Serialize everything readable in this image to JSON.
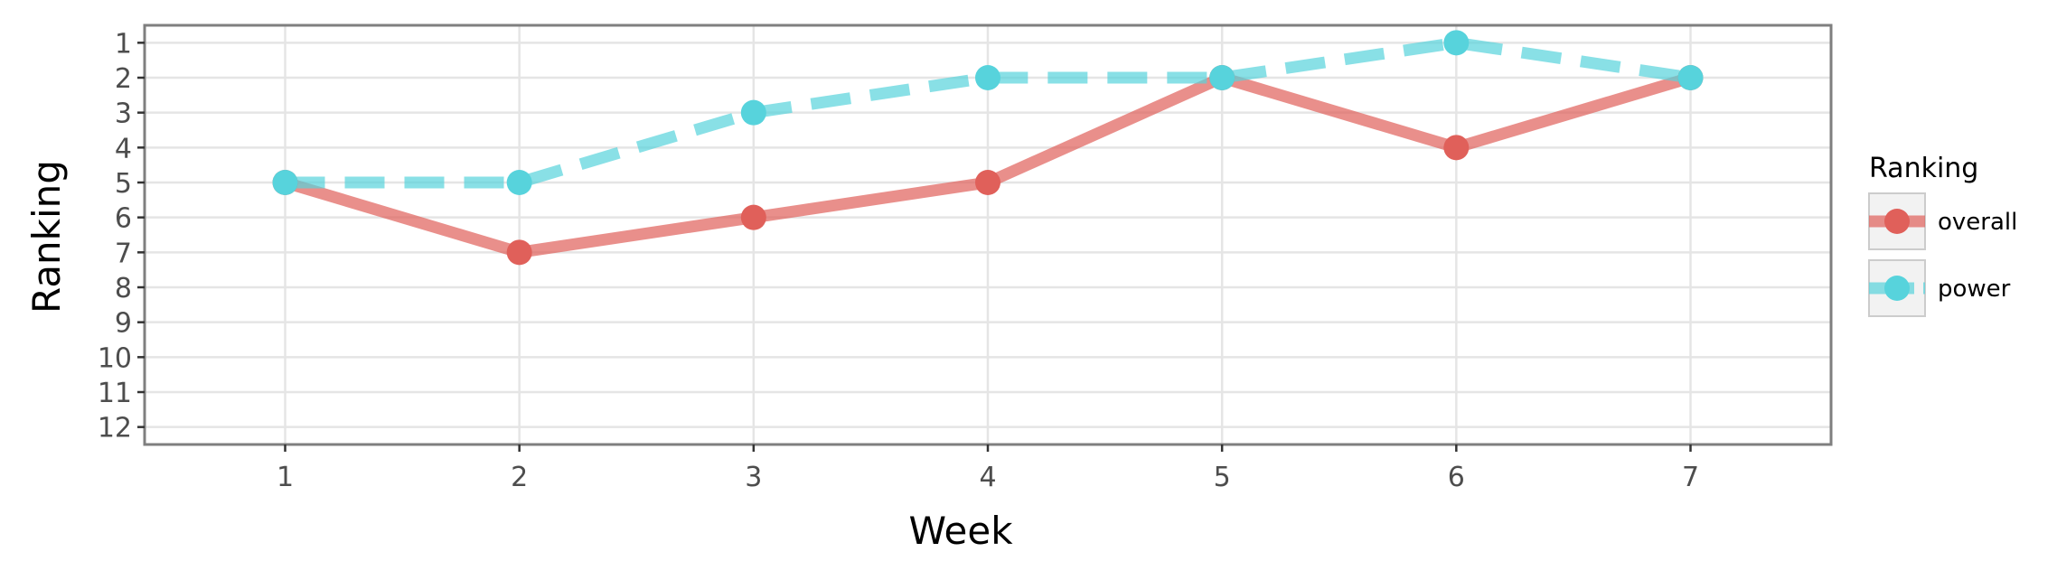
{
  "chart_data": {
    "type": "line",
    "title": "",
    "xlabel": "Week",
    "ylabel": "Ranking",
    "x": [
      1,
      2,
      3,
      4,
      5,
      6,
      7
    ],
    "xlim": [
      0.4,
      7.6
    ],
    "ylim": [
      12.5,
      0.5
    ],
    "y_reversed": true,
    "x_ticks": [
      1,
      2,
      3,
      4,
      5,
      6,
      7
    ],
    "y_ticks": [
      1,
      2,
      3,
      4,
      5,
      6,
      7,
      8,
      9,
      10,
      11,
      12
    ],
    "grid": true,
    "legend_title": "Ranking",
    "legend_position": "right",
    "series": [
      {
        "name": "overall",
        "values": [
          5,
          7,
          6,
          5,
          2,
          4,
          2
        ],
        "color": "#e0605a",
        "line_style": "solid"
      },
      {
        "name": "power",
        "values": [
          5,
          5,
          3,
          2,
          2,
          1,
          2
        ],
        "color": "#57d3dc",
        "line_style": "dashed"
      }
    ]
  }
}
